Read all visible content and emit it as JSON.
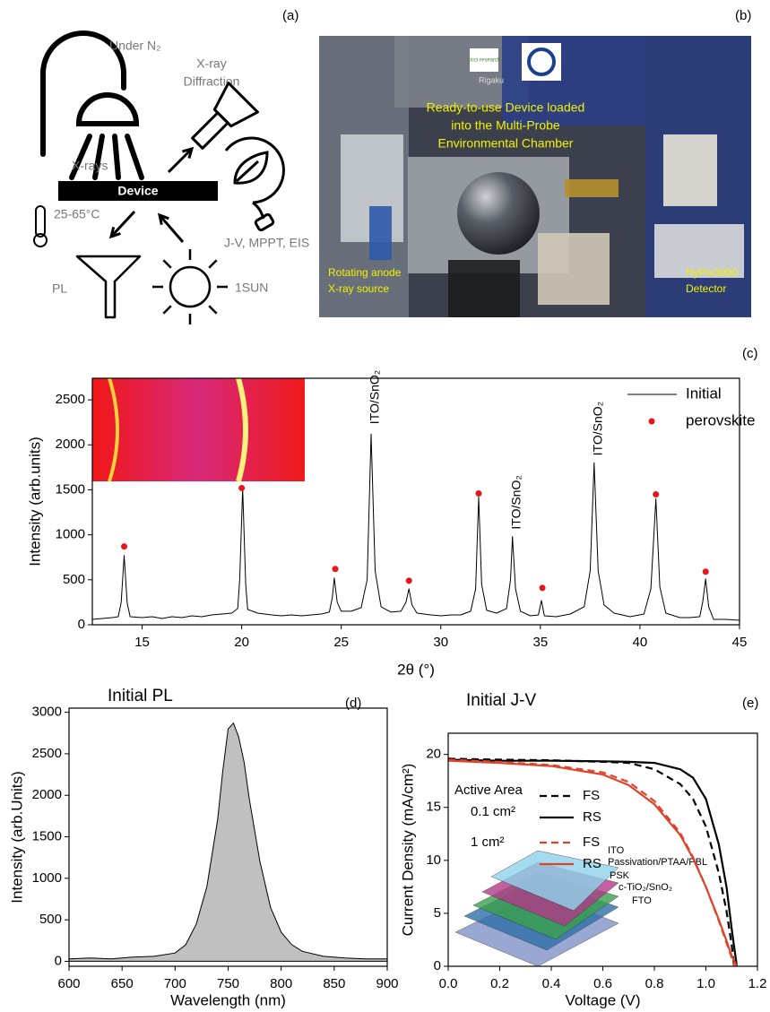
{
  "panel_a": {
    "label": "(a)",
    "under": "Under N₂",
    "xrd_lines": [
      "X-ray",
      "Diffraction"
    ],
    "xrays": "X-rays",
    "device": "Device",
    "temperature": "25-65°C",
    "measurements": "J-V, MPPT, EIS",
    "pl": "PL",
    "sun": "1SUN"
  },
  "panel_b": {
    "label": "(b)",
    "logo_text": "cicci research",
    "brand": "Rigaku",
    "caption_lines": [
      "Ready-to-use Device loaded",
      "into the Multi-Probe",
      "Environmental Chamber"
    ],
    "source_lines": [
      "Rotating anode",
      "X-ray source"
    ],
    "detector_lines": [
      "HyPix3000",
      "Detector"
    ]
  },
  "chart_data": [
    {
      "type": "line",
      "label": "(c)",
      "x_label": "2θ (°)",
      "y_label": "Intensity (arb.units)",
      "xlim": [
        12.5,
        45
      ],
      "ylim": [
        0,
        2740
      ],
      "xticks": [
        15,
        20,
        25,
        30,
        35,
        40,
        45
      ],
      "yticks": [
        0,
        500,
        1000,
        1500,
        2000,
        2500
      ],
      "legend": "upper right",
      "series": [
        {
          "name": "Initial",
          "color": "#000000",
          "mode": "line",
          "x": [
            12.5,
            13.0,
            13.5,
            13.8,
            13.95,
            14.1,
            14.25,
            14.4,
            15.0,
            15.5,
            16.0,
            16.5,
            17.0,
            17.5,
            18.0,
            18.5,
            19.0,
            19.5,
            19.8,
            19.9,
            20.05,
            20.2,
            20.3,
            20.8,
            21.5,
            22.0,
            22.5,
            23.0,
            23.5,
            24.0,
            24.4,
            24.55,
            24.65,
            24.8,
            25.0,
            25.5,
            26.0,
            26.3,
            26.5,
            26.7,
            27.0,
            27.5,
            28.0,
            28.25,
            28.4,
            28.55,
            28.8,
            29.5,
            30.0,
            30.5,
            31.0,
            31.5,
            31.75,
            31.9,
            32.05,
            32.3,
            32.8,
            33.3,
            33.5,
            33.6,
            33.75,
            34.0,
            34.5,
            34.9,
            35.05,
            35.2,
            35.8,
            36.5,
            37.2,
            37.5,
            37.7,
            37.9,
            38.2,
            38.7,
            39.5,
            40.2,
            40.55,
            40.8,
            41.0,
            41.3,
            42.0,
            42.5,
            43.0,
            43.15,
            43.3,
            43.45,
            43.7,
            44.3,
            45.0
          ],
          "values": [
            60,
            70,
            80,
            90,
            250,
            770,
            240,
            90,
            80,
            90,
            70,
            90,
            80,
            100,
            90,
            110,
            120,
            130,
            180,
            500,
            1520,
            450,
            170,
            130,
            110,
            100,
            110,
            100,
            110,
            120,
            140,
            300,
            520,
            250,
            150,
            150,
            190,
            500,
            2120,
            600,
            200,
            140,
            150,
            250,
            400,
            220,
            130,
            110,
            100,
            110,
            110,
            150,
            400,
            1420,
            450,
            160,
            130,
            180,
            500,
            980,
            400,
            150,
            100,
            110,
            270,
            100,
            90,
            120,
            200,
            600,
            1800,
            600,
            220,
            130,
            90,
            120,
            400,
            1400,
            420,
            130,
            80,
            80,
            90,
            250,
            510,
            200,
            60,
            60,
            50
          ]
        },
        {
          "name": "perovskite",
          "color": "#e8141b",
          "mode": "markers",
          "x": [
            14.1,
            20.0,
            24.7,
            28.4,
            31.9,
            35.1,
            40.8,
            43.3
          ],
          "values": [
            870,
            1520,
            620,
            490,
            1460,
            410,
            1450,
            590
          ]
        }
      ],
      "annotations": [
        {
          "text": "ITO/SnO₂",
          "x": 26.5,
          "y": 2230
        },
        {
          "text": "ITO/SnO₂",
          "x": 33.6,
          "y": 1060
        },
        {
          "text": "ITO/SnO₂",
          "x": 37.7,
          "y": 1880
        }
      ]
    },
    {
      "type": "area",
      "label": "(d)",
      "title": "Initial PL",
      "x_label": "Wavelength (nm)",
      "y_label": "Intensity (arb.Units)",
      "xlim": [
        600,
        900
      ],
      "ylim": [
        -60,
        3050
      ],
      "xticks": [
        600,
        650,
        700,
        750,
        800,
        850,
        900
      ],
      "yticks": [
        0,
        500,
        1000,
        1500,
        2000,
        2500,
        3000
      ],
      "series": [
        {
          "color": "#000000",
          "fill": "#c0c0c0",
          "x": [
            600,
            620,
            640,
            660,
            680,
            700,
            710,
            720,
            730,
            740,
            745,
            750,
            755,
            760,
            765,
            770,
            780,
            790,
            800,
            810,
            820,
            840,
            860,
            880,
            900
          ],
          "values": [
            30,
            40,
            30,
            50,
            60,
            100,
            200,
            450,
            900,
            1700,
            2300,
            2800,
            2870,
            2700,
            2400,
            1950,
            1200,
            650,
            350,
            200,
            120,
            60,
            40,
            30,
            30
          ]
        }
      ]
    },
    {
      "type": "line",
      "label": "(e)",
      "title": "Initial J-V",
      "x_label": "Voltage (V)",
      "y_label": "Current Density (mA/cm²)",
      "xlim": [
        0,
        1.2
      ],
      "ylim": [
        0,
        22
      ],
      "xticks": [
        {
          "value": 0,
          "label": "0.0"
        },
        0.2,
        0.4,
        0.6,
        0.8,
        {
          "value": 1,
          "label": "1.0"
        },
        1.2
      ],
      "yticks": [
        0,
        5,
        10,
        15,
        20
      ],
      "legend_title": "Active Area",
      "legend_groups": [
        "0.1 cm²",
        "1 cm²"
      ],
      "series": [
        {
          "name": "FS",
          "color": "#000000",
          "dash": true,
          "x": [
            0,
            0.2,
            0.4,
            0.6,
            0.7,
            0.8,
            0.9,
            0.95,
            1.0,
            1.05,
            1.08,
            1.1,
            1.11
          ],
          "values": [
            19.6,
            19.5,
            19.45,
            19.3,
            19.2,
            18.6,
            17.2,
            15.8,
            13.2,
            8.8,
            5.2,
            2.0,
            0
          ]
        },
        {
          "name": "RS",
          "color": "#000000",
          "dash": false,
          "x": [
            0,
            0.2,
            0.4,
            0.6,
            0.7,
            0.8,
            0.9,
            0.95,
            1.0,
            1.05,
            1.08,
            1.1,
            1.12
          ],
          "values": [
            19.5,
            19.4,
            19.4,
            19.35,
            19.3,
            19.2,
            18.6,
            17.8,
            15.8,
            11.5,
            7.5,
            3.5,
            0
          ]
        },
        {
          "name": "FS",
          "color": "#e0432b",
          "dash": true,
          "x": [
            0,
            0.2,
            0.4,
            0.6,
            0.7,
            0.8,
            0.9,
            0.95,
            1.0,
            1.05,
            1.08,
            1.1,
            1.11
          ],
          "values": [
            19.5,
            19.3,
            19.0,
            18.3,
            17.4,
            15.6,
            12.6,
            10.3,
            7.5,
            4.3,
            2.2,
            0.8,
            0
          ]
        },
        {
          "name": "RS",
          "color": "#e0432b",
          "dash": false,
          "x": [
            0,
            0.2,
            0.4,
            0.6,
            0.7,
            0.8,
            0.9,
            0.95,
            1.0,
            1.05,
            1.08,
            1.1,
            1.12
          ],
          "values": [
            19.4,
            19.2,
            18.9,
            18.1,
            17.1,
            15.3,
            12.4,
            10.2,
            7.5,
            4.4,
            2.4,
            1.0,
            0
          ]
        }
      ],
      "inset_labels": [
        "ITO",
        "Passivation/PTAA/PBL",
        "PSK",
        "c-TiO₂/SnO₂",
        "FTO"
      ]
    }
  ]
}
